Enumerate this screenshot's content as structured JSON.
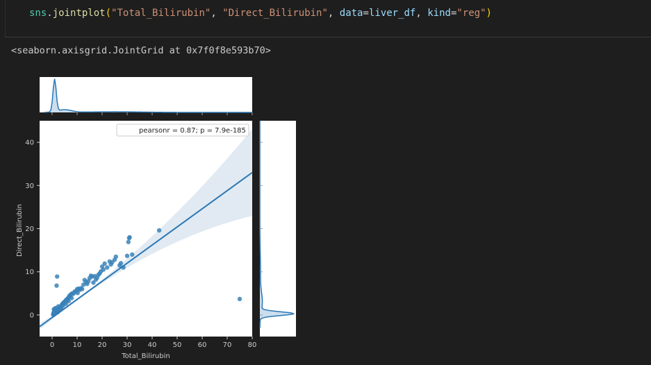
{
  "code_cell": {
    "tokens": [
      {
        "text": "sns",
        "cls": "tok-id"
      },
      {
        "text": ".",
        "cls": "tok-plain"
      },
      {
        "text": "jointplot",
        "cls": "tok-fn"
      },
      {
        "text": "(",
        "cls": "tok-paren"
      },
      {
        "text": "\"Total_Bilirubin\"",
        "cls": "tok-str"
      },
      {
        "text": ", ",
        "cls": "tok-plain"
      },
      {
        "text": "\"Direct_Bilirubin\"",
        "cls": "tok-str"
      },
      {
        "text": ", ",
        "cls": "tok-plain"
      },
      {
        "text": "data",
        "cls": "tok-kw"
      },
      {
        "text": "=",
        "cls": "tok-plain"
      },
      {
        "text": "liver_df",
        "cls": "tok-kw"
      },
      {
        "text": ", ",
        "cls": "tok-plain"
      },
      {
        "text": "kind",
        "cls": "tok-kw"
      },
      {
        "text": "=",
        "cls": "tok-plain"
      },
      {
        "text": "\"reg\"",
        "cls": "tok-str"
      },
      {
        "text": ")",
        "cls": "tok-paren"
      }
    ]
  },
  "output": {
    "repr": "<seaborn.axisgrid.JointGrid at 0x7f0f8e593b70>"
  },
  "chart_data": {
    "type": "scatter",
    "xlabel": "Total_Bilirubin",
    "ylabel": "Direct_Bilirubin",
    "xlim": [
      -5,
      80
    ],
    "ylim": [
      -5,
      45
    ],
    "xticks": [
      0,
      10,
      20,
      30,
      40,
      50,
      60,
      70,
      80
    ],
    "yticks": [
      0,
      10,
      20,
      30,
      40
    ],
    "annotation": "pearsonr = 0.87; p = 7.9e-185",
    "regression": {
      "slope": 0.42,
      "intercept": -0.6
    },
    "colors": {
      "points": "#3a82b8",
      "line": "#2a77b4",
      "band": "#dce6f0",
      "panel": "#ffffff",
      "axis_text": "#cccccc"
    },
    "points": [
      [
        0.4,
        0.1
      ],
      [
        0.5,
        0.2
      ],
      [
        0.6,
        0.1
      ],
      [
        0.7,
        0.2
      ],
      [
        0.7,
        0.3
      ],
      [
        0.8,
        0.2
      ],
      [
        0.9,
        0.3
      ],
      [
        1.0,
        0.4
      ],
      [
        0.6,
        0.5
      ],
      [
        0.8,
        0.7
      ],
      [
        1.1,
        0.4
      ],
      [
        1.2,
        0.5
      ],
      [
        1.3,
        0.6
      ],
      [
        1.4,
        0.7
      ],
      [
        1.5,
        0.6
      ],
      [
        1.6,
        0.8
      ],
      [
        1.8,
        0.9
      ],
      [
        2.0,
        1.0
      ],
      [
        2.2,
        1.1
      ],
      [
        0.7,
        1.3
      ],
      [
        1.0,
        1.4
      ],
      [
        1.5,
        1.6
      ],
      [
        2.4,
        1.2
      ],
      [
        2.6,
        1.4
      ],
      [
        2.8,
        1.5
      ],
      [
        3.0,
        1.6
      ],
      [
        3.2,
        1.8
      ],
      [
        3.5,
        2.0
      ],
      [
        3.8,
        2.2
      ],
      [
        4.0,
        2.5
      ],
      [
        4.2,
        2.6
      ],
      [
        4.5,
        2.8
      ],
      [
        4.8,
        3.0
      ],
      [
        5.0,
        2.9
      ],
      [
        5.3,
        3.2
      ],
      [
        5.6,
        3.5
      ],
      [
        6.0,
        3.4
      ],
      [
        6.2,
        3.8
      ],
      [
        6.5,
        4.0
      ],
      [
        6.8,
        4.2
      ],
      [
        7.0,
        4.5
      ],
      [
        7.3,
        4.4
      ],
      [
        7.6,
        4.8
      ],
      [
        8.0,
        5.0
      ],
      [
        8.5,
        4.9
      ],
      [
        9.0,
        5.4
      ],
      [
        9.5,
        5.5
      ],
      [
        10.0,
        6.0
      ],
      [
        10.2,
        5.1
      ],
      [
        10.6,
        6.1
      ],
      [
        11.0,
        5.8
      ],
      [
        11.5,
        6.2
      ],
      [
        12.0,
        6.0
      ],
      [
        12.5,
        7.0
      ],
      [
        13.0,
        8.1
      ],
      [
        13.5,
        7.6
      ],
      [
        14.0,
        7.2
      ],
      [
        14.5,
        7.8
      ],
      [
        15.0,
        8.5
      ],
      [
        15.5,
        9.1
      ],
      [
        16.0,
        8.9
      ],
      [
        16.5,
        7.5
      ],
      [
        17.0,
        9.0
      ],
      [
        17.5,
        8.2
      ],
      [
        18.0,
        8.6
      ],
      [
        18.5,
        9.3
      ],
      [
        19.0,
        9.6
      ],
      [
        19.5,
        10.1
      ],
      [
        20.0,
        11.2
      ],
      [
        20.5,
        10.5
      ],
      [
        21.0,
        11.9
      ],
      [
        22.0,
        11.0
      ],
      [
        23.0,
        12.4
      ],
      [
        23.5,
        11.7
      ],
      [
        24.0,
        12.2
      ],
      [
        25.0,
        12.8
      ],
      [
        25.5,
        13.5
      ],
      [
        27.0,
        11.5
      ],
      [
        27.5,
        12.0
      ],
      [
        28.5,
        11.0
      ],
      [
        30.0,
        13.7
      ],
      [
        30.5,
        16.9
      ],
      [
        30.8,
        17.8
      ],
      [
        31.0,
        18.0
      ],
      [
        32.0,
        14.0
      ],
      [
        42.8,
        19.6
      ],
      [
        75.0,
        3.7
      ],
      [
        1.8,
        6.8
      ],
      [
        2.0,
        8.9
      ],
      [
        1.2,
        1.5
      ],
      [
        0.9,
        1.0
      ],
      [
        1.6,
        1.1
      ],
      [
        2.1,
        0.6
      ],
      [
        2.5,
        2.0
      ],
      [
        3.3,
        1.2
      ],
      [
        3.7,
        1.7
      ],
      [
        4.4,
        2.2
      ],
      [
        5.5,
        2.6
      ],
      [
        6.6,
        3.2
      ],
      [
        7.8,
        3.9
      ]
    ]
  }
}
